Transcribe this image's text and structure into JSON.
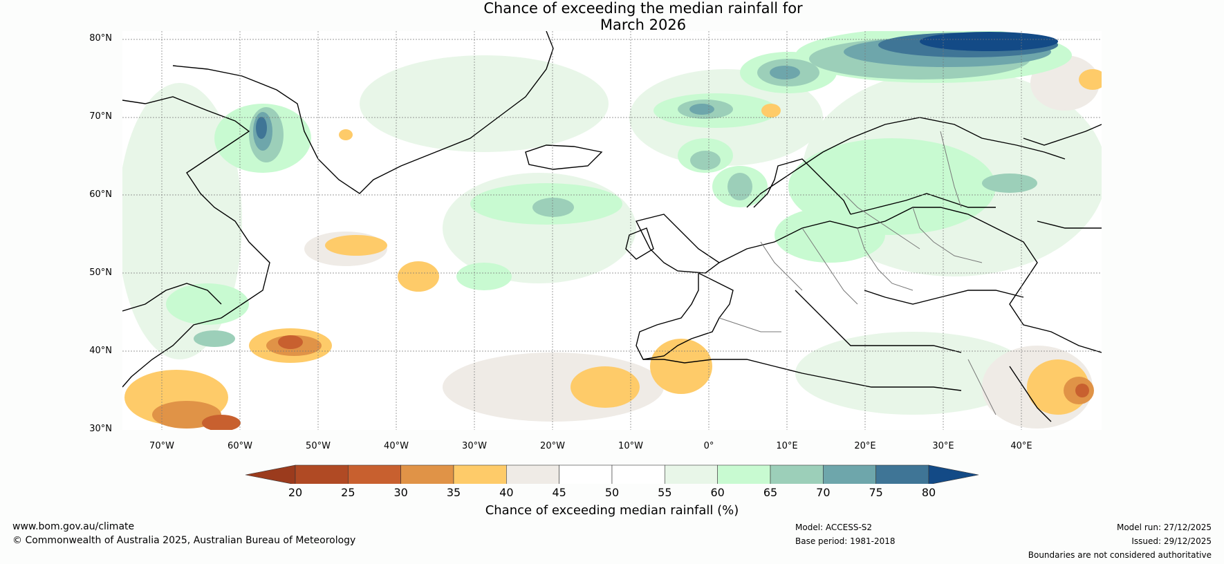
{
  "title": {
    "line1": "Chance of exceeding the median rainfall for",
    "line2": "March 2026"
  },
  "map": {
    "latitude_labels": [
      "80°N",
      "70°N",
      "60°N",
      "50°N",
      "40°N",
      "30°N"
    ],
    "longitude_labels": [
      "70°W",
      "60°W",
      "50°W",
      "40°W",
      "30°W",
      "20°W",
      "10°W",
      "0°",
      "10°E",
      "20°E",
      "30°E",
      "40°E"
    ],
    "extent": {
      "lon": [
        -75,
        50
      ],
      "lat": [
        30,
        81
      ]
    }
  },
  "colorbar": {
    "ticks": [
      "20",
      "25",
      "30",
      "35",
      "40",
      "45",
      "50",
      "55",
      "60",
      "65",
      "70",
      "75",
      "80"
    ],
    "colors": [
      "#b04a24",
      "#c8602f",
      "#e09347",
      "#fecb69",
      "#efebe6",
      "#ffffff",
      "#ffffff",
      "#e8f6e8",
      "#c8fad1",
      "#9ccfb9",
      "#6ea6ab",
      "#3f7596"
    ],
    "under_color": "#9b3b1d",
    "over_color": "#134a86",
    "label": "Chance of exceeding median rainfall (%)"
  },
  "footer": {
    "website": "www.bom.gov.au/climate",
    "copyright": "© Commonwealth of Australia 2025, Australian Bureau of Meteorology",
    "model": "Model: ACCESS-S2",
    "base_period": "Base period: 1981-2018",
    "model_run": "Model run: 27/12/2025",
    "issued": "Issued: 29/12/2025",
    "disclaimer": "Boundaries are not considered authoritative"
  }
}
